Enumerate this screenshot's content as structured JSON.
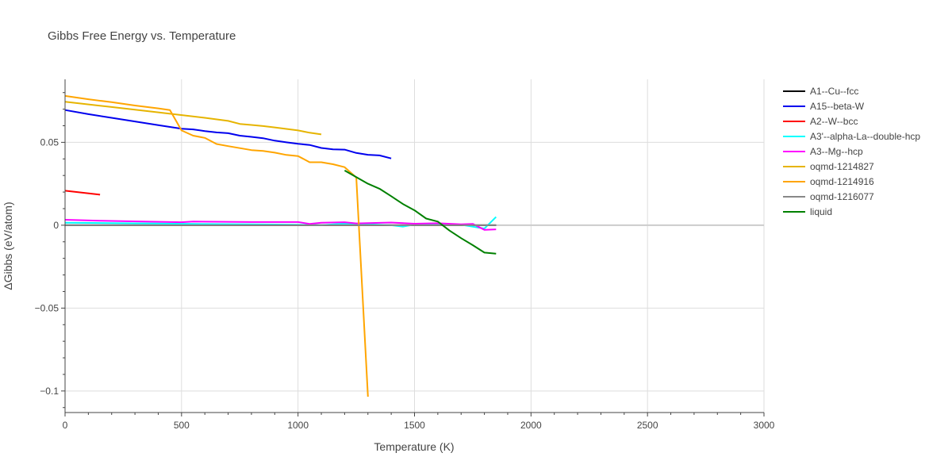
{
  "chart_data": {
    "type": "line",
    "title": "Gibbs Free Energy vs. Temperature",
    "xlabel": "Temperature (K)",
    "ylabel": "ΔGibbs (eV/atom)",
    "xlim": [
      0,
      3000
    ],
    "ylim": [
      -0.113,
      0.088
    ],
    "x_ticks": [
      0,
      500,
      1000,
      1500,
      2000,
      2500,
      3000
    ],
    "x_tick_labels": [
      "0",
      "500",
      "1000",
      "1500",
      "2000",
      "2500",
      "3000"
    ],
    "y_ticks": [
      0.05,
      0,
      -0.05,
      -0.1
    ],
    "y_tick_labels": [
      "0.05",
      "0",
      "−0.05",
      "−0.1"
    ],
    "grid": true,
    "legend_position": "right",
    "series": [
      {
        "name": "A1--Cu--fcc",
        "color": "#000000",
        "x": [
          0,
          500,
          1000,
          1500,
          1850
        ],
        "y": [
          0,
          0,
          0,
          0,
          0
        ]
      },
      {
        "name": "A15--beta-W",
        "color": "#0000ee",
        "x": [
          0,
          100,
          200,
          300,
          400,
          500,
          550,
          600,
          650,
          700,
          750,
          800,
          850,
          900,
          950,
          1000,
          1050,
          1100,
          1150,
          1200,
          1250,
          1300,
          1350,
          1400
        ],
        "y": [
          0.0695,
          0.067,
          0.0648,
          0.0626,
          0.0604,
          0.0582,
          0.0578,
          0.0568,
          0.056,
          0.0555,
          0.054,
          0.0533,
          0.0525,
          0.051,
          0.05,
          0.0491,
          0.0484,
          0.0466,
          0.0458,
          0.0456,
          0.0436,
          0.0425,
          0.0421,
          0.0403
        ]
      },
      {
        "name": "A2--W--bcc",
        "color": "#ff0000",
        "x": [
          0,
          150
        ],
        "y": [
          0.0208,
          0.0184
        ]
      },
      {
        "name": "A3'--alpha-La--double-hcp",
        "color": "#00ffff",
        "x": [
          0,
          200,
          400,
          600,
          800,
          1000,
          1100,
          1200,
          1300,
          1400,
          1450,
          1500,
          1600,
          1700,
          1800,
          1850
        ],
        "y": [
          0.0015,
          0.0013,
          0.001,
          0.0007,
          0.0005,
          0.0003,
          0,
          0.001,
          0.0005,
          0,
          -0.0008,
          0.0004,
          0.001,
          0.0003,
          -0.002,
          0.005
        ]
      },
      {
        "name": "A3--Mg--hcp",
        "color": "#ff00ff",
        "x": [
          0,
          150,
          500,
          550,
          800,
          1000,
          1050,
          1100,
          1200,
          1250,
          1400,
          1500,
          1600,
          1700,
          1750,
          1800,
          1850
        ],
        "y": [
          0.0033,
          0.0027,
          0.0018,
          0.0022,
          0.0019,
          0.0019,
          0.0008,
          0.0015,
          0.0018,
          0.0011,
          0.0016,
          0.0009,
          0.0012,
          0.0005,
          0.0008,
          -0.0028,
          -0.0025
        ]
      },
      {
        "name": "oqmd-1214827",
        "color": "#e6b400",
        "x": [
          0,
          200,
          400,
          600,
          700,
          750,
          800,
          850,
          900,
          950,
          1000,
          1050,
          1100
        ],
        "y": [
          0.0745,
          0.0713,
          0.0681,
          0.0648,
          0.0629,
          0.0611,
          0.0605,
          0.0598,
          0.059,
          0.0581,
          0.0572,
          0.0558,
          0.0548
        ]
      },
      {
        "name": "oqmd-1214916",
        "color": "#ffa500",
        "x": [
          0,
          100,
          200,
          300,
          400,
          450,
          500,
          550,
          600,
          650,
          700,
          750,
          800,
          850,
          900,
          950,
          1000,
          1050,
          1100,
          1150,
          1200,
          1250,
          1300
        ],
        "y": [
          0.078,
          0.076,
          0.0742,
          0.0722,
          0.0705,
          0.0695,
          0.0572,
          0.054,
          0.0527,
          0.049,
          0.0477,
          0.0465,
          0.0453,
          0.0448,
          0.0438,
          0.0424,
          0.0417,
          0.038,
          0.038,
          0.0368,
          0.035,
          0.0288,
          -0.1035
        ]
      },
      {
        "name": "oqmd-1216077",
        "color": "#888888",
        "x": [
          0,
          500,
          1000,
          1500,
          1850
        ],
        "y": [
          0,
          0,
          0,
          0,
          0
        ]
      },
      {
        "name": "liquid",
        "color": "#008000",
        "x": [
          1200,
          1250,
          1300,
          1350,
          1400,
          1450,
          1500,
          1550,
          1600,
          1650,
          1700,
          1750,
          1800,
          1850
        ],
        "y": [
          0.033,
          0.029,
          0.025,
          0.022,
          0.0175,
          0.0128,
          0.009,
          0.004,
          0.0022,
          -0.0032,
          -0.0078,
          -0.012,
          -0.0165,
          -0.0172
        ]
      }
    ]
  }
}
